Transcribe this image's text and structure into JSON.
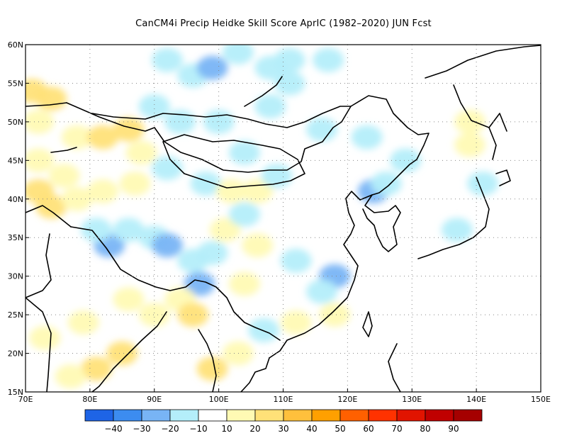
{
  "title": "CanCM4i Precip Heidke Skill Score AprIC (1982–2020) JUN Fcst",
  "map": {
    "lon_range": [
      70,
      150
    ],
    "lat_range": [
      15,
      60
    ],
    "lat_ticks": [
      {
        "value": 60,
        "label": "60N"
      },
      {
        "value": 55,
        "label": "55N"
      },
      {
        "value": 50,
        "label": "50N"
      },
      {
        "value": 45,
        "label": "45N"
      },
      {
        "value": 40,
        "label": "40N"
      },
      {
        "value": 35,
        "label": "35N"
      },
      {
        "value": 30,
        "label": "30N"
      },
      {
        "value": 25,
        "label": "25N"
      },
      {
        "value": 20,
        "label": "20N"
      },
      {
        "value": 15,
        "label": "15N"
      }
    ],
    "lon_ticks": [
      {
        "value": 70,
        "label": "70E"
      },
      {
        "value": 80,
        "label": "80E"
      },
      {
        "value": 90,
        "label": "90E"
      },
      {
        "value": 100,
        "label": "100E"
      },
      {
        "value": 110,
        "label": "110E"
      },
      {
        "value": 120,
        "label": "120E"
      },
      {
        "value": 130,
        "label": "130E"
      },
      {
        "value": 140,
        "label": "140E"
      },
      {
        "value": 150,
        "label": "150E"
      }
    ],
    "grid": "dotted"
  },
  "colorbar": {
    "colors": [
      "#1e64e6",
      "#3c8cf0",
      "#78b4f5",
      "#b4eefa",
      "#ffffff",
      "#fffab4",
      "#ffe178",
      "#ffc03c",
      "#ffa000",
      "#ff6000",
      "#ff3200",
      "#e11400",
      "#c00000",
      "#a50000"
    ],
    "labels": [
      "−40",
      "−30",
      "−20",
      "−10",
      "10",
      "20",
      "30",
      "40",
      "50",
      "60",
      "70",
      "80",
      "90"
    ]
  },
  "chart_data": {
    "type": "heatmap",
    "title": "CanCM4i Precip Heidke Skill Score AprIC (1982–2020) JUN Fcst",
    "xlim": [
      70,
      150
    ],
    "ylim": [
      15,
      60
    ],
    "field_cells": [
      {
        "lon": 71,
        "lat": 54,
        "value": 25
      },
      {
        "lon": 74,
        "lat": 53,
        "value": 25
      },
      {
        "lon": 72,
        "lat": 50,
        "value": 15
      },
      {
        "lon": 78,
        "lat": 48,
        "value": 15
      },
      {
        "lon": 82,
        "lat": 48,
        "value": 25
      },
      {
        "lon": 86,
        "lat": 49,
        "value": 20
      },
      {
        "lon": 88,
        "lat": 46,
        "value": 15
      },
      {
        "lon": 72,
        "lat": 45,
        "value": 15
      },
      {
        "lon": 76,
        "lat": 43,
        "value": 15
      },
      {
        "lon": 72,
        "lat": 41,
        "value": 25
      },
      {
        "lon": 74,
        "lat": 39,
        "value": 20
      },
      {
        "lon": 78,
        "lat": 40,
        "value": 15
      },
      {
        "lon": 82,
        "lat": 41,
        "value": 15
      },
      {
        "lon": 87,
        "lat": 42,
        "value": 15
      },
      {
        "lon": 92,
        "lat": 58,
        "value": -15
      },
      {
        "lon": 96,
        "lat": 56,
        "value": -15
      },
      {
        "lon": 99,
        "lat": 57,
        "value": -25
      },
      {
        "lon": 103,
        "lat": 59,
        "value": -15
      },
      {
        "lon": 108,
        "lat": 57,
        "value": -15
      },
      {
        "lon": 111,
        "lat": 58,
        "value": -15
      },
      {
        "lon": 117,
        "lat": 58,
        "value": -15
      },
      {
        "lon": 111,
        "lat": 55,
        "value": -15
      },
      {
        "lon": 90,
        "lat": 52,
        "value": -15
      },
      {
        "lon": 94,
        "lat": 50,
        "value": -15
      },
      {
        "lon": 100,
        "lat": 50,
        "value": -15
      },
      {
        "lon": 108,
        "lat": 52,
        "value": -15
      },
      {
        "lon": 104,
        "lat": 46,
        "value": -15
      },
      {
        "lon": 92,
        "lat": 44,
        "value": -15
      },
      {
        "lon": 98,
        "lat": 42,
        "value": -15
      },
      {
        "lon": 102,
        "lat": 41,
        "value": 15
      },
      {
        "lon": 106,
        "lat": 41,
        "value": 15
      },
      {
        "lon": 109,
        "lat": 43,
        "value": -15
      },
      {
        "lon": 116,
        "lat": 49,
        "value": -15
      },
      {
        "lon": 123,
        "lat": 48,
        "value": -15
      },
      {
        "lon": 124,
        "lat": 41,
        "value": -25
      },
      {
        "lon": 126,
        "lat": 42,
        "value": -15
      },
      {
        "lon": 129,
        "lat": 45,
        "value": -15
      },
      {
        "lon": 139,
        "lat": 47,
        "value": 15
      },
      {
        "lon": 139,
        "lat": 50,
        "value": 15
      },
      {
        "lon": 83,
        "lat": 34,
        "value": -25
      },
      {
        "lon": 81,
        "lat": 36,
        "value": -15
      },
      {
        "lon": 86,
        "lat": 36,
        "value": -15
      },
      {
        "lon": 90,
        "lat": 35,
        "value": -15
      },
      {
        "lon": 92,
        "lat": 34,
        "value": -25
      },
      {
        "lon": 96,
        "lat": 32,
        "value": -15
      },
      {
        "lon": 99,
        "lat": 33,
        "value": -15
      },
      {
        "lon": 101,
        "lat": 36,
        "value": 15
      },
      {
        "lon": 104,
        "lat": 38,
        "value": -15
      },
      {
        "lon": 106,
        "lat": 34,
        "value": 15
      },
      {
        "lon": 97,
        "lat": 29,
        "value": -25
      },
      {
        "lon": 104,
        "lat": 29,
        "value": 15
      },
      {
        "lon": 112,
        "lat": 32,
        "value": -15
      },
      {
        "lon": 118,
        "lat": 30,
        "value": -25
      },
      {
        "lon": 116,
        "lat": 28,
        "value": -15
      },
      {
        "lon": 86,
        "lat": 27,
        "value": 15
      },
      {
        "lon": 90,
        "lat": 25,
        "value": 15
      },
      {
        "lon": 94,
        "lat": 27,
        "value": 15
      },
      {
        "lon": 96,
        "lat": 25,
        "value": 20
      },
      {
        "lon": 85,
        "lat": 20,
        "value": 25
      },
      {
        "lon": 81,
        "lat": 18,
        "value": 25
      },
      {
        "lon": 77,
        "lat": 17,
        "value": 15
      },
      {
        "lon": 79,
        "lat": 24,
        "value": 15
      },
      {
        "lon": 73,
        "lat": 22,
        "value": 15
      },
      {
        "lon": 99,
        "lat": 18,
        "value": 20
      },
      {
        "lon": 103,
        "lat": 20,
        "value": 15
      },
      {
        "lon": 107,
        "lat": 23,
        "value": -15
      },
      {
        "lon": 112,
        "lat": 24,
        "value": 15
      },
      {
        "lon": 118,
        "lat": 25,
        "value": 15
      },
      {
        "lon": 137,
        "lat": 36,
        "value": -15
      },
      {
        "lon": 141,
        "lat": 42,
        "value": -15
      }
    ]
  }
}
